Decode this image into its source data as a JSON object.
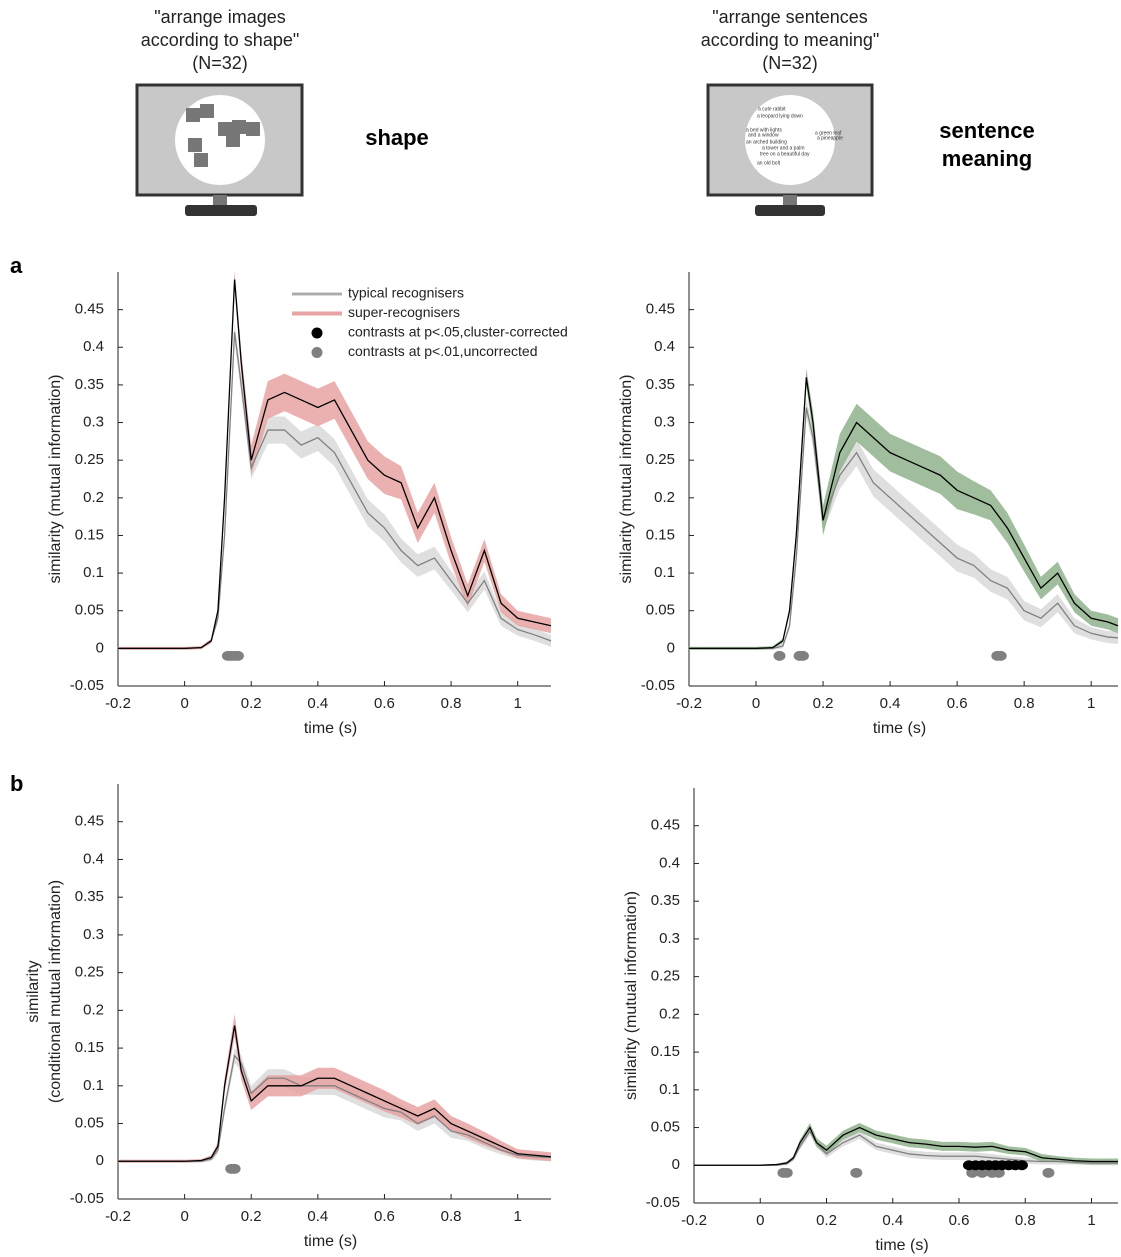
{
  "header": {
    "left_caption": [
      "\"arrange images",
      "according  to shape\"",
      "(N=32)"
    ],
    "left_label": [
      "shape"
    ],
    "right_caption": [
      "\"arrange sentences",
      "according  to meaning\"",
      "(N=32)"
    ],
    "right_label": [
      "sentence",
      "meaning"
    ],
    "screen_texts": [
      "a cute rabbit",
      "a leopard lying down",
      "a bed with lights",
      "and a window",
      "an arched building",
      "a green leaf",
      "a pineapple",
      "a tower and a palm",
      "tree on a beautiful day",
      "an old  bolt"
    ]
  },
  "panel_labels": [
    "a",
    "b"
  ],
  "chart_data": [
    {
      "type": "line",
      "xlabel": "time (s)",
      "ylabel": "similarity (mutual information)",
      "xlim": [
        -0.2,
        1.1
      ],
      "ylim": [
        -0.05,
        0.5
      ],
      "xticks": [
        -0.2,
        0,
        0.2,
        0.4,
        0.6,
        0.8,
        1
      ],
      "yticks": [
        -0.05,
        0,
        0.05,
        0.1,
        0.15,
        0.2,
        0.25,
        0.3,
        0.35,
        0.4,
        0.45
      ],
      "legend": "upper center",
      "x": [
        -0.2,
        -0.1,
        0,
        0.05,
        0.08,
        0.1,
        0.12,
        0.15,
        0.17,
        0.2,
        0.25,
        0.3,
        0.35,
        0.4,
        0.45,
        0.5,
        0.55,
        0.6,
        0.65,
        0.7,
        0.75,
        0.8,
        0.85,
        0.9,
        0.95,
        1.0,
        1.05,
        1.1
      ],
      "series": [
        {
          "name": "typical recognisers",
          "color": "#808080",
          "band_color": "#d9d9d9",
          "values": [
            0,
            0,
            0,
            0.001,
            0.01,
            0.04,
            0.15,
            0.42,
            0.35,
            0.24,
            0.29,
            0.29,
            0.27,
            0.28,
            0.26,
            0.22,
            0.18,
            0.16,
            0.13,
            0.11,
            0.12,
            0.09,
            0.06,
            0.09,
            0.04,
            0.025,
            0.018,
            0.01
          ],
          "errors": [
            0.002,
            0.002,
            0.002,
            0.002,
            0.003,
            0.005,
            0.01,
            0.012,
            0.012,
            0.015,
            0.018,
            0.018,
            0.018,
            0.018,
            0.018,
            0.018,
            0.018,
            0.018,
            0.016,
            0.015,
            0.015,
            0.013,
            0.012,
            0.012,
            0.01,
            0.008,
            0.008,
            0.008
          ]
        },
        {
          "name": "super-recognisers",
          "color": "#000000",
          "band_color": "#e8a3a3",
          "values": [
            0,
            0,
            0,
            0.001,
            0.01,
            0.05,
            0.2,
            0.49,
            0.38,
            0.25,
            0.33,
            0.34,
            0.33,
            0.32,
            0.33,
            0.29,
            0.25,
            0.23,
            0.22,
            0.16,
            0.2,
            0.13,
            0.07,
            0.13,
            0.06,
            0.04,
            0.035,
            0.03
          ],
          "errors": [
            0.002,
            0.002,
            0.002,
            0.002,
            0.003,
            0.005,
            0.01,
            0.012,
            0.015,
            0.02,
            0.025,
            0.025,
            0.025,
            0.025,
            0.025,
            0.025,
            0.025,
            0.025,
            0.022,
            0.02,
            0.02,
            0.018,
            0.015,
            0.015,
            0.012,
            0.01,
            0.01,
            0.01
          ]
        }
      ],
      "markers": [
        {
          "name": "contrasts at p<.05,cluster-corrected",
          "color": "#000000",
          "x": [],
          "y": []
        },
        {
          "name": "contrasts at p<.01,uncorrected",
          "color": "#808080",
          "x": [
            0.13,
            0.14,
            0.15,
            0.16
          ],
          "y": [
            -0.01,
            -0.01,
            -0.01,
            -0.01
          ]
        }
      ]
    },
    {
      "type": "line",
      "xlabel": "time (s)",
      "ylabel": "similarity (mutual information)",
      "xlim": [
        -0.2,
        1.08
      ],
      "ylim": [
        -0.05,
        0.5
      ],
      "xticks": [
        -0.2,
        0,
        0.2,
        0.4,
        0.6,
        0.8,
        1
      ],
      "yticks": [
        -0.05,
        0,
        0.05,
        0.1,
        0.15,
        0.2,
        0.25,
        0.3,
        0.35,
        0.4,
        0.45
      ],
      "x": [
        -0.2,
        -0.1,
        0,
        0.05,
        0.08,
        0.1,
        0.12,
        0.15,
        0.17,
        0.2,
        0.25,
        0.3,
        0.35,
        0.4,
        0.45,
        0.5,
        0.55,
        0.6,
        0.65,
        0.7,
        0.75,
        0.8,
        0.85,
        0.9,
        0.95,
        1.0,
        1.05,
        1.08
      ],
      "series": [
        {
          "color": "#808080",
          "band_color": "#d9d9d9",
          "values": [
            0,
            0,
            0,
            0,
            0.003,
            0.03,
            0.12,
            0.32,
            0.28,
            0.17,
            0.23,
            0.26,
            0.22,
            0.2,
            0.18,
            0.16,
            0.14,
            0.12,
            0.11,
            0.09,
            0.08,
            0.05,
            0.04,
            0.06,
            0.03,
            0.02,
            0.015,
            0.014
          ],
          "errors": [
            0.002,
            0.002,
            0.002,
            0.002,
            0.003,
            0.005,
            0.01,
            0.012,
            0.012,
            0.015,
            0.018,
            0.018,
            0.018,
            0.018,
            0.018,
            0.018,
            0.018,
            0.018,
            0.016,
            0.015,
            0.015,
            0.013,
            0.012,
            0.012,
            0.01,
            0.008,
            0.008,
            0.008
          ]
        },
        {
          "color": "#000000",
          "band_color": "#8fb38c",
          "values": [
            0,
            0,
            0,
            0.001,
            0.01,
            0.05,
            0.15,
            0.36,
            0.3,
            0.17,
            0.26,
            0.3,
            0.28,
            0.26,
            0.25,
            0.24,
            0.23,
            0.21,
            0.2,
            0.19,
            0.16,
            0.12,
            0.08,
            0.1,
            0.06,
            0.04,
            0.035,
            0.03
          ],
          "errors": [
            0.002,
            0.002,
            0.002,
            0.002,
            0.003,
            0.005,
            0.01,
            0.012,
            0.015,
            0.02,
            0.025,
            0.025,
            0.025,
            0.025,
            0.025,
            0.025,
            0.025,
            0.025,
            0.022,
            0.02,
            0.02,
            0.018,
            0.015,
            0.015,
            0.012,
            0.01,
            0.01,
            0.01
          ]
        }
      ],
      "markers": [
        {
          "color": "#808080",
          "x": [
            0.07,
            0.13,
            0.14,
            0.72,
            0.73
          ],
          "y": [
            -0.01,
            -0.01,
            -0.01,
            -0.01,
            -0.01
          ]
        }
      ]
    },
    {
      "type": "line",
      "xlabel": "time (s)",
      "ylabel": [
        "similarity",
        "(conditional mutual information)"
      ],
      "xlim": [
        -0.2,
        1.1
      ],
      "ylim": [
        -0.05,
        0.5
      ],
      "xticks": [
        -0.2,
        0,
        0.2,
        0.4,
        0.6,
        0.8,
        1
      ],
      "yticks": [
        -0.05,
        0,
        0.05,
        0.1,
        0.15,
        0.2,
        0.25,
        0.3,
        0.35,
        0.4,
        0.45
      ],
      "x": [
        -0.2,
        -0.1,
        0,
        0.05,
        0.08,
        0.1,
        0.12,
        0.15,
        0.17,
        0.2,
        0.25,
        0.3,
        0.35,
        0.4,
        0.45,
        0.5,
        0.55,
        0.6,
        0.65,
        0.7,
        0.75,
        0.8,
        0.85,
        0.9,
        0.95,
        1.0,
        1.05,
        1.1
      ],
      "series": [
        {
          "color": "#808080",
          "band_color": "#d9d9d9",
          "values": [
            0,
            0,
            0,
            0,
            0.003,
            0.015,
            0.07,
            0.14,
            0.13,
            0.09,
            0.11,
            0.11,
            0.1,
            0.1,
            0.1,
            0.09,
            0.08,
            0.07,
            0.065,
            0.05,
            0.06,
            0.04,
            0.035,
            0.025,
            0.015,
            0.008,
            0.006,
            0.005
          ],
          "errors": [
            0.002,
            0.002,
            0.002,
            0.002,
            0.003,
            0.005,
            0.008,
            0.01,
            0.01,
            0.01,
            0.012,
            0.012,
            0.012,
            0.012,
            0.012,
            0.012,
            0.012,
            0.012,
            0.011,
            0.01,
            0.01,
            0.009,
            0.008,
            0.008,
            0.006,
            0.005,
            0.005,
            0.005
          ]
        },
        {
          "color": "#000000",
          "band_color": "#e8a3a3",
          "values": [
            0,
            0,
            0,
            0.001,
            0.005,
            0.02,
            0.1,
            0.18,
            0.12,
            0.08,
            0.1,
            0.1,
            0.1,
            0.11,
            0.11,
            0.1,
            0.09,
            0.08,
            0.07,
            0.06,
            0.07,
            0.05,
            0.04,
            0.03,
            0.02,
            0.01,
            0.008,
            0.006
          ],
          "errors": [
            0.002,
            0.002,
            0.002,
            0.002,
            0.003,
            0.005,
            0.01,
            0.015,
            0.012,
            0.012,
            0.014,
            0.014,
            0.014,
            0.014,
            0.014,
            0.014,
            0.014,
            0.014,
            0.012,
            0.012,
            0.012,
            0.01,
            0.01,
            0.009,
            0.007,
            0.006,
            0.006,
            0.006
          ]
        }
      ],
      "markers": [
        {
          "color": "#808080",
          "x": [
            0.14,
            0.15
          ],
          "y": [
            -0.01,
            -0.01
          ]
        }
      ]
    },
    {
      "type": "line",
      "xlabel": "time (s)",
      "ylabel": "similarity (mutual information)",
      "xlim": [
        -0.2,
        1.08
      ],
      "ylim": [
        -0.05,
        0.5
      ],
      "xticks": [
        -0.2,
        0,
        0.2,
        0.4,
        0.6,
        0.8,
        1
      ],
      "yticks": [
        -0.05,
        0,
        0.05,
        0.1,
        0.15,
        0.2,
        0.25,
        0.3,
        0.35,
        0.4,
        0.45
      ],
      "x": [
        -0.2,
        -0.1,
        0,
        0.05,
        0.08,
        0.1,
        0.12,
        0.15,
        0.17,
        0.2,
        0.25,
        0.3,
        0.35,
        0.4,
        0.45,
        0.5,
        0.55,
        0.6,
        0.65,
        0.7,
        0.75,
        0.8,
        0.85,
        0.9,
        0.95,
        1.0,
        1.05,
        1.08
      ],
      "series": [
        {
          "color": "#808080",
          "band_color": "#d9d9d9",
          "values": [
            0,
            0,
            0,
            0,
            0.002,
            0.008,
            0.025,
            0.045,
            0.03,
            0.015,
            0.03,
            0.04,
            0.025,
            0.02,
            0.015,
            0.013,
            0.012,
            0.012,
            0.012,
            0.01,
            0.008,
            0.006,
            0.005,
            0.005,
            0.004,
            0.003,
            0.003,
            0.003
          ],
          "errors": [
            0.001,
            0.001,
            0.001,
            0.001,
            0.002,
            0.002,
            0.004,
            0.005,
            0.005,
            0.005,
            0.005,
            0.005,
            0.005,
            0.005,
            0.005,
            0.005,
            0.005,
            0.005,
            0.005,
            0.005,
            0.004,
            0.004,
            0.004,
            0.004,
            0.003,
            0.003,
            0.003,
            0.003
          ]
        },
        {
          "color": "#000000",
          "band_color": "#8fb38c",
          "values": [
            0,
            0,
            0,
            0.001,
            0.003,
            0.01,
            0.03,
            0.05,
            0.03,
            0.02,
            0.04,
            0.05,
            0.04,
            0.035,
            0.03,
            0.028,
            0.025,
            0.025,
            0.024,
            0.025,
            0.02,
            0.018,
            0.01,
            0.008,
            0.006,
            0.005,
            0.005,
            0.005
          ],
          "errors": [
            0.001,
            0.001,
            0.001,
            0.001,
            0.002,
            0.002,
            0.004,
            0.006,
            0.006,
            0.006,
            0.006,
            0.006,
            0.006,
            0.006,
            0.006,
            0.006,
            0.006,
            0.006,
            0.006,
            0.006,
            0.005,
            0.005,
            0.005,
            0.004,
            0.004,
            0.004,
            0.004,
            0.004
          ]
        }
      ],
      "markers": [
        {
          "color": "#808080",
          "x": [
            0.07,
            0.08,
            0.29,
            0.64,
            0.67,
            0.7,
            0.72,
            0.87
          ],
          "y": [
            -0.01,
            -0.01,
            -0.01,
            -0.01,
            -0.01,
            -0.01,
            -0.01,
            -0.01
          ]
        },
        {
          "color": "#000000",
          "x": [
            0.63,
            0.65,
            0.67,
            0.69,
            0.71,
            0.73,
            0.75,
            0.77,
            0.79
          ],
          "y": [
            0,
            0,
            0,
            0,
            0,
            0,
            0,
            0,
            0
          ]
        }
      ]
    }
  ]
}
